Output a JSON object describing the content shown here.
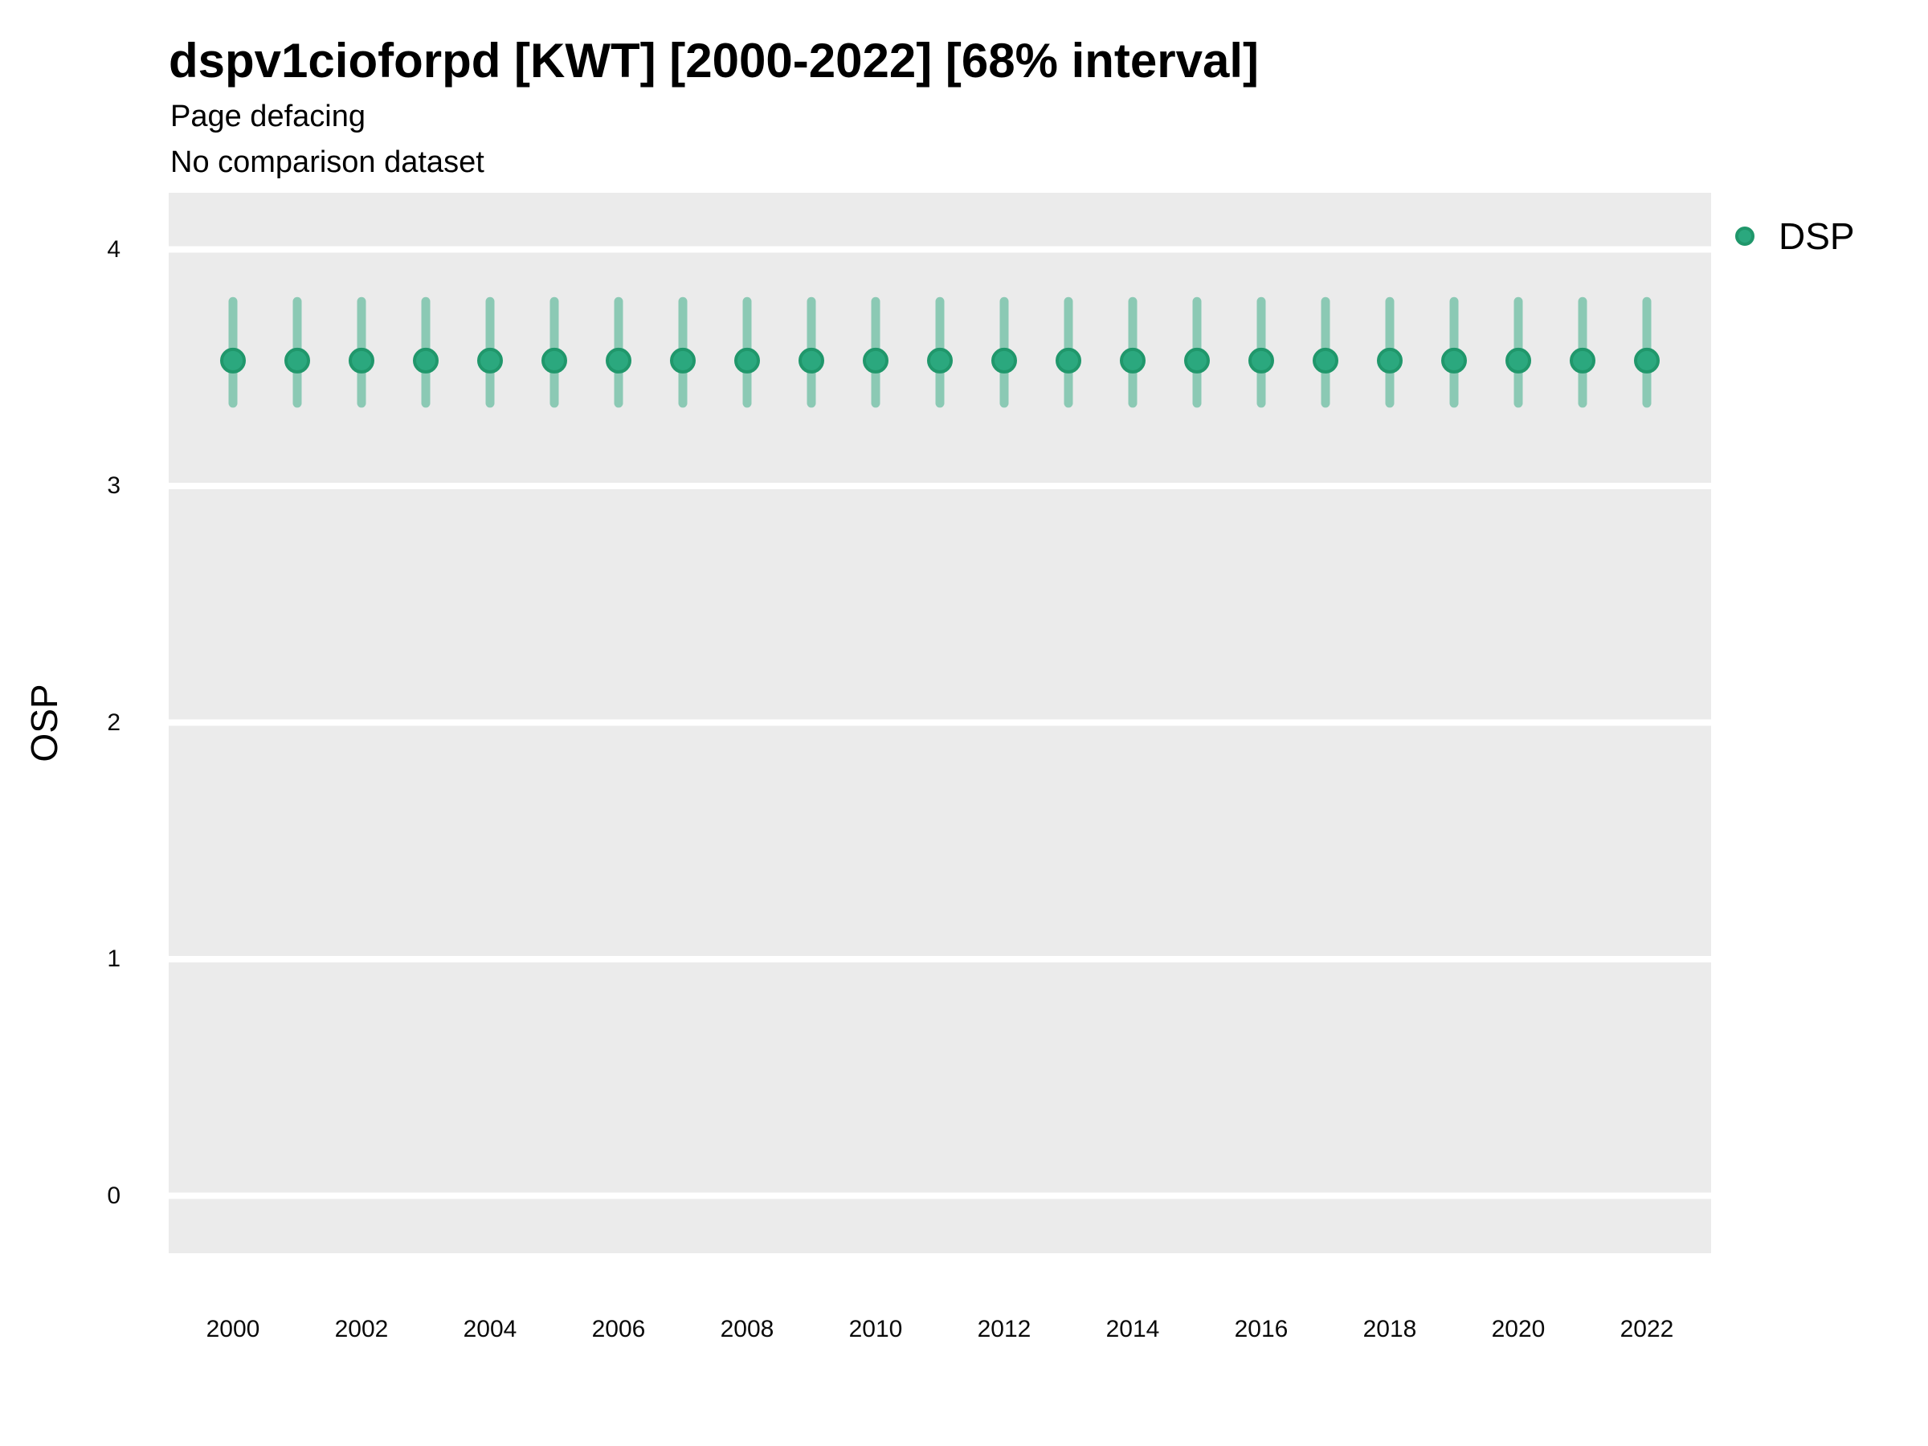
{
  "header": {
    "title": "dspv1cioforpd [KWT] [2000-2022] [68% interval]",
    "subtitle1": "Page defacing",
    "subtitle2": "No comparison dataset"
  },
  "axes": {
    "ylabel": "OSP"
  },
  "legend": {
    "label": "DSP",
    "marker_icon": "filled-circle",
    "color": "#2BA87E"
  },
  "chart_data": {
    "type": "scatter",
    "subtype": "pointrange-errorbar",
    "title": "dspv1cioforpd [KWT] [2000-2022] [68% interval]",
    "subtitle": [
      "Page defacing",
      "No comparison dataset"
    ],
    "interval_level": "68%",
    "xlabel": "",
    "ylabel": "OSP",
    "legend_position": "right",
    "grid": "horizontal-major-only",
    "panel_color": "#EBEBEB",
    "grid_color": "#FFFFFF",
    "x": [
      2000,
      2001,
      2002,
      2003,
      2004,
      2005,
      2006,
      2007,
      2008,
      2009,
      2010,
      2011,
      2012,
      2013,
      2014,
      2015,
      2016,
      2017,
      2018,
      2019,
      2020,
      2021,
      2022
    ],
    "series": [
      {
        "name": "DSP",
        "values": [
          3.53,
          3.53,
          3.53,
          3.53,
          3.53,
          3.53,
          3.53,
          3.53,
          3.53,
          3.53,
          3.53,
          3.53,
          3.53,
          3.53,
          3.53,
          3.53,
          3.53,
          3.53,
          3.53,
          3.53,
          3.53,
          3.53,
          3.53
        ],
        "lower": [
          3.35,
          3.35,
          3.35,
          3.35,
          3.35,
          3.35,
          3.35,
          3.35,
          3.35,
          3.35,
          3.35,
          3.35,
          3.35,
          3.35,
          3.35,
          3.35,
          3.35,
          3.35,
          3.35,
          3.35,
          3.35,
          3.35,
          3.35
        ],
        "upper": [
          3.78,
          3.78,
          3.78,
          3.78,
          3.78,
          3.78,
          3.78,
          3.78,
          3.78,
          3.78,
          3.78,
          3.78,
          3.78,
          3.78,
          3.78,
          3.78,
          3.78,
          3.78,
          3.78,
          3.78,
          3.78,
          3.78,
          3.78
        ],
        "point_color": "#2BA87E",
        "point_stroke_color": "#20976B",
        "interval_color": "#2BA87E",
        "interval_alpha": 0.5
      }
    ],
    "xticks": [
      2000,
      2002,
      2004,
      2006,
      2008,
      2010,
      2012,
      2014,
      2016,
      2018,
      2020,
      2022
    ],
    "yticks": [
      0,
      1,
      2,
      3,
      4
    ],
    "ylim": [
      -0.25,
      4.24
    ]
  }
}
